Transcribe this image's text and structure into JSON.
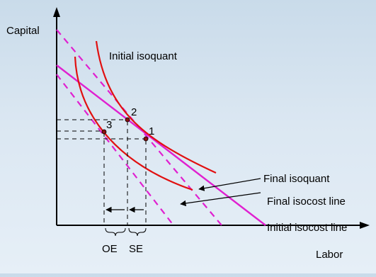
{
  "axes": {
    "y_label": "Capital",
    "x_label": "Labor"
  },
  "curves": {
    "initial_isoquant": "Initial isoquant",
    "final_isoquant": "Final isoquant",
    "final_isocost": "Final isocost line",
    "initial_isocost": "Initial isocost line"
  },
  "points": {
    "p1": "1",
    "p2": "2",
    "p3": "3"
  },
  "effects": {
    "oe": "OE",
    "se": "SE"
  },
  "colors": {
    "isoquant": "#e11010",
    "isocost": "#e020d0",
    "axis": "#000000",
    "guide": "#000000",
    "point_fill": "#8b1010",
    "background_top": "#c9dbea",
    "background_bottom": "#e6eff7"
  }
}
